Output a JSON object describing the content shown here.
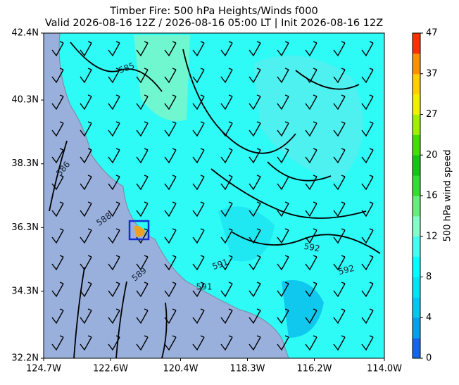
{
  "chart_data": {
    "type": "map",
    "title": "Timber Fire: 500 hPa Heights/Winds f000",
    "subtitle": "Valid 2026-08-16 12Z / 2026-08-16 05:00 LT | Init 2026-08-16 12Z",
    "xlim": [
      -124.7,
      -114.0
    ],
    "ylim": [
      32.2,
      42.4
    ],
    "xticks": [
      {
        "value": -124.7,
        "label": "124.7W"
      },
      {
        "value": -122.6,
        "label": "122.6W"
      },
      {
        "value": -120.4,
        "label": "120.4W"
      },
      {
        "value": -118.3,
        "label": "118.3W"
      },
      {
        "value": -116.2,
        "label": "116.2W"
      },
      {
        "value": -114.0,
        "label": "114.0W"
      }
    ],
    "yticks": [
      {
        "value": 42.4,
        "label": "42.4N"
      },
      {
        "value": 40.3,
        "label": "40.3N"
      },
      {
        "value": 38.3,
        "label": "38.3N"
      },
      {
        "value": 36.3,
        "label": "36.3N"
      },
      {
        "value": 34.3,
        "label": "34.3N"
      },
      {
        "value": 32.2,
        "label": "32.2N"
      }
    ],
    "contour_labels": [
      "585",
      "586",
      "588",
      "589",
      "591",
      "591",
      "592",
      "592"
    ],
    "colorbar": {
      "label": "500 hPa wind speed",
      "ticks": [
        0,
        4,
        8,
        12,
        16,
        20,
        27,
        37,
        47
      ],
      "colors": [
        "#1464f0",
        "#00a0f0",
        "#00c8f0",
        "#00e6f0",
        "#00ffff",
        "#40fff0",
        "#80ffc8",
        "#60f080",
        "#30e030",
        "#10c810",
        "#40e000",
        "#a0f000",
        "#f0f000",
        "#ffd000",
        "#ff9000",
        "#ff3000"
      ]
    }
  }
}
